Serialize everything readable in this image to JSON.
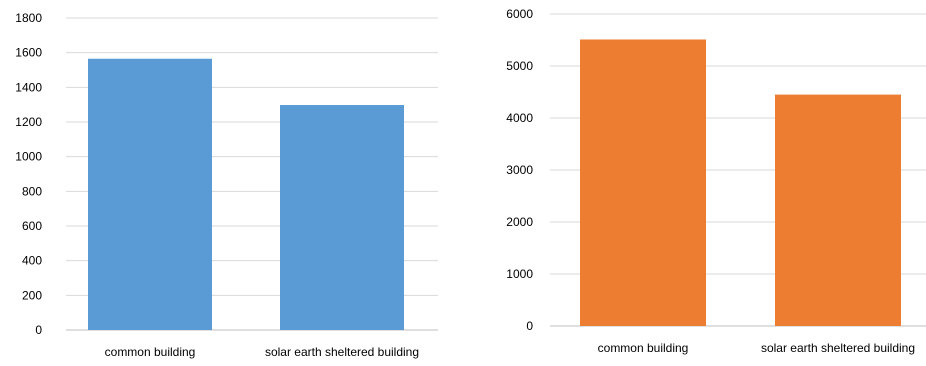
{
  "chart_data": [
    {
      "type": "bar",
      "categories": [
        "common building",
        "solar earth sheltered building"
      ],
      "values": [
        1565,
        1298
      ],
      "title": "",
      "xlabel": "",
      "ylabel": "",
      "ylim": [
        0,
        1800
      ],
      "yticks": [
        0,
        200,
        400,
        600,
        800,
        1000,
        1200,
        1400,
        1600,
        1800
      ],
      "grid": true,
      "legend": "none",
      "color": "#5B9BD5"
    },
    {
      "type": "bar",
      "categories": [
        "common building",
        "solar earth sheltered building"
      ],
      "values": [
        5510,
        4450
      ],
      "title": "",
      "xlabel": "",
      "ylabel": "",
      "ylim": [
        0,
        6000
      ],
      "yticks": [
        0,
        1000,
        2000,
        3000,
        4000,
        5000,
        6000
      ],
      "grid": true,
      "legend": "none",
      "color": "#ED7D31"
    }
  ]
}
